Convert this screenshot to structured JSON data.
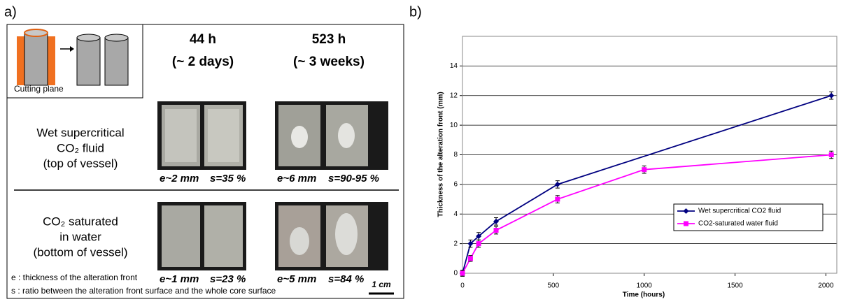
{
  "panel_a": {
    "label": "a)",
    "cutting_plane": "Cutting plane",
    "columns": [
      {
        "time": "44 h",
        "duration": "(~ 2 days)"
      },
      {
        "time": "523 h",
        "duration": "(~ 3 weeks)"
      }
    ],
    "rows": [
      {
        "condition": [
          "Wet supercritical",
          "CO₂ fluid",
          "(top of vessel)"
        ],
        "measures": [
          [
            "e~2 mm",
            "s=35 %"
          ],
          [
            "e~6 mm",
            "s=90-95 %"
          ]
        ]
      },
      {
        "condition": [
          "CO₂ saturated",
          "in water",
          "(bottom of vessel)"
        ],
        "measures": [
          [
            "e~1 mm",
            "s=23 %"
          ],
          [
            "e~5 mm",
            "s=84 %"
          ]
        ]
      }
    ],
    "notes": [
      "e : thickness of the alteration front",
      "s : ratio between the alteration front surface and the whole core surface"
    ],
    "scale": "1 cm"
  },
  "chart_data": {
    "type": "line",
    "label": "b)",
    "x_label": "Time (hours)",
    "y_label": "Thickness of the alteration front (mm)",
    "xlim": [
      0,
      2060
    ],
    "xticks": [
      0,
      500,
      1000,
      1500,
      2000
    ],
    "ylim": [
      0,
      16
    ],
    "yticks": [
      0,
      2,
      4,
      6,
      8,
      10,
      12,
      14
    ],
    "grid": true,
    "legend": "lower right",
    "series": [
      {
        "name": "Wet supercritical CO2 fluid",
        "color": "#000080",
        "marker": "diamond",
        "x": [
          0,
          44,
          89,
          185,
          523,
          2030
        ],
        "values": [
          0,
          2,
          2.5,
          3.5,
          6,
          12
        ],
        "errors": [
          0.2,
          0.25,
          0.25,
          0.25,
          0.25,
          0.25
        ]
      },
      {
        "name": "CO2-saturated water fluid",
        "color": "#ff00ff",
        "marker": "square",
        "x": [
          0,
          44,
          89,
          185,
          523,
          1000,
          2030
        ],
        "values": [
          0,
          1,
          2,
          2.9,
          5,
          7,
          8
        ],
        "errors": [
          0.2,
          0.2,
          0.25,
          0.25,
          0.25,
          0.25,
          0.25
        ]
      }
    ]
  }
}
